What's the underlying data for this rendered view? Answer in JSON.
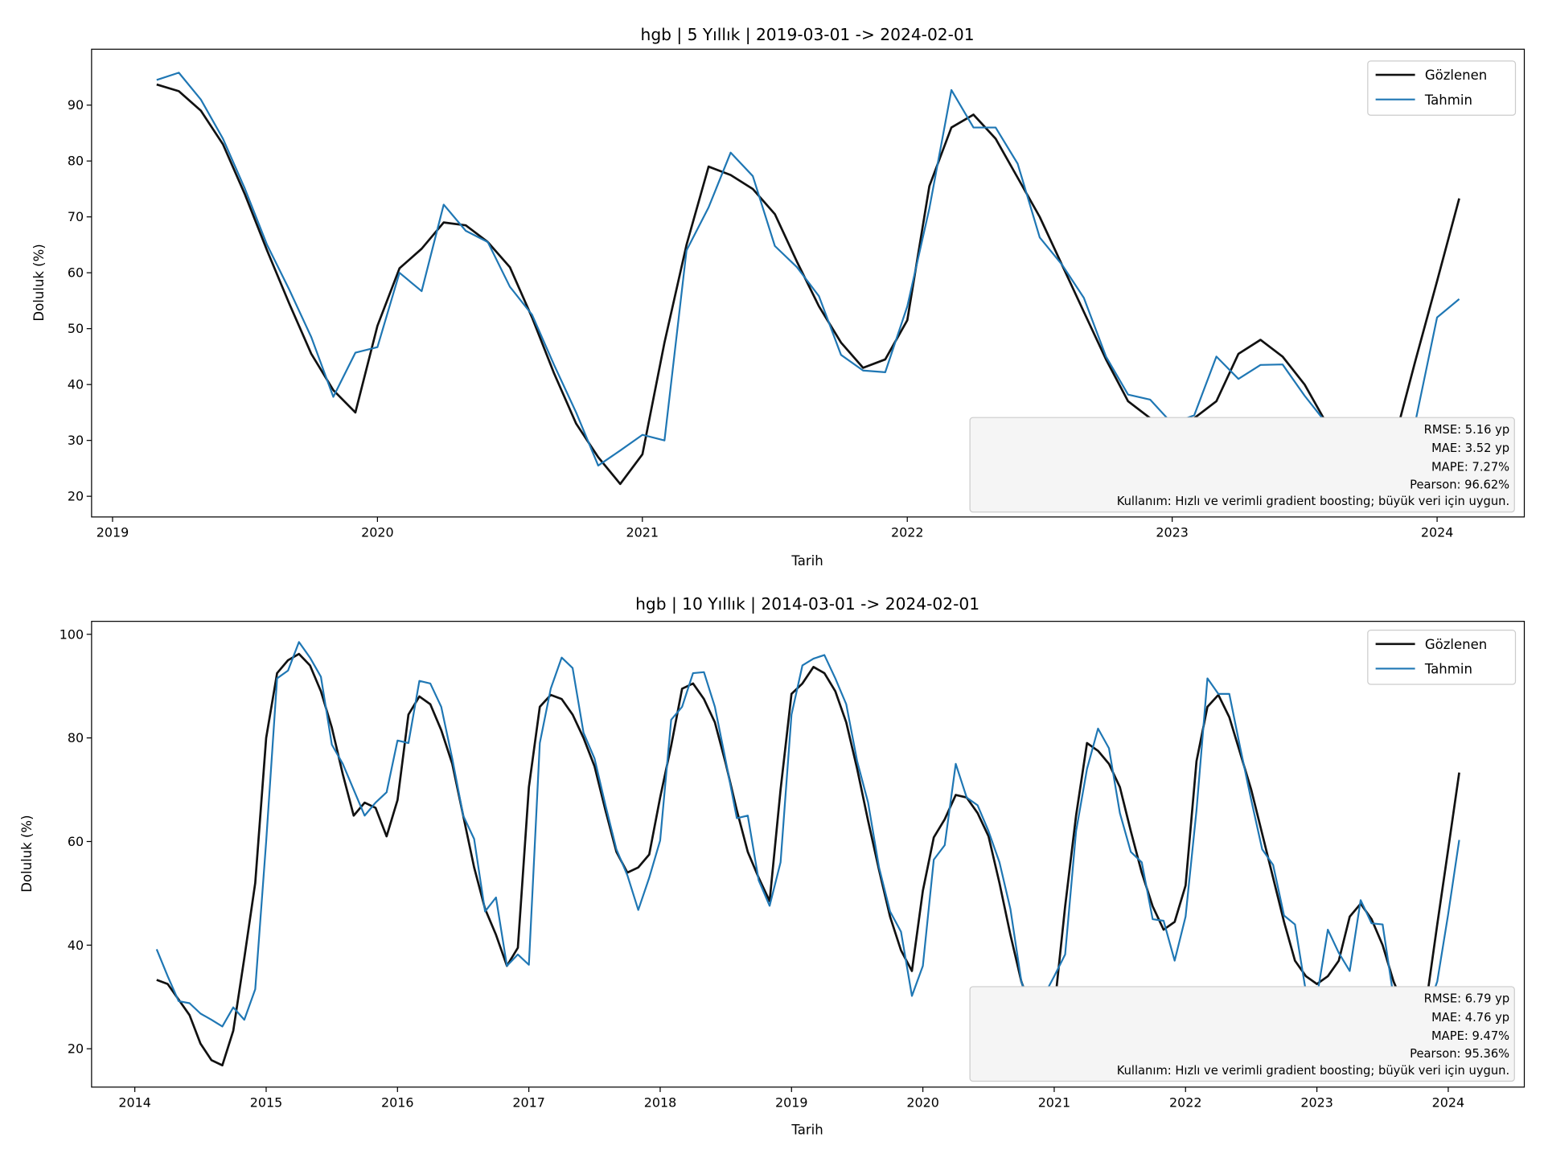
{
  "colors": {
    "observed": "#111111",
    "predicted": "#1f77b4",
    "metrics_box": "#f5f5f5"
  },
  "chart_data": [
    {
      "type": "line",
      "title": "hgb | 5 Yıllık | 2019-03-01 -> 2024-02-01",
      "xlabel": "Tarih",
      "ylabel": "Doluluk (%)",
      "x_start": "2019-03",
      "x_frequency": "monthly",
      "xticks": [
        "2019",
        "2020",
        "2021",
        "2022",
        "2023",
        "2024"
      ],
      "yticks": [
        20,
        30,
        40,
        50,
        60,
        70,
        80,
        90
      ],
      "ylim": [
        16.3,
        100
      ],
      "grid": false,
      "legend": "top-right",
      "series": [
        {
          "name": "Gözlenen",
          "color": "#111111",
          "values": [
            93.7,
            92.5,
            89,
            83,
            74,
            64,
            54.5,
            45.5,
            39,
            35,
            50.5,
            60.8,
            64.3,
            69,
            68.5,
            65.5,
            61,
            52,
            42,
            33,
            27,
            22.2,
            27.5,
            47.5,
            65,
            79,
            77.5,
            75,
            70.5,
            62,
            54,
            47.5,
            43,
            44.5,
            51.5,
            75.5,
            86,
            88.3,
            84,
            77,
            70,
            61.5,
            53,
            44.5,
            37,
            34,
            32.5,
            34,
            37,
            45.5,
            48,
            45,
            40,
            33,
            28,
            26,
            29,
            44,
            58.5,
            73.3
          ]
        },
        {
          "name": "Tahmin",
          "color": "#1f77b4",
          "values": [
            94.5,
            95.8,
            91,
            84,
            75,
            65,
            57,
            48.5,
            37.8,
            45.7,
            46.7,
            60,
            56.7,
            72.2,
            67.5,
            65.5,
            57.5,
            52.5,
            43.5,
            35,
            25.5,
            28.2,
            31,
            30,
            64,
            71.7,
            81.5,
            77.3,
            64.8,
            61,
            55.8,
            45.3,
            42.5,
            42.2,
            54,
            71.5,
            92.7,
            86,
            86,
            79.5,
            66.3,
            61.5,
            55.5,
            45,
            38.2,
            37.3,
            33,
            34.5,
            45,
            41,
            43.5,
            43.6,
            38,
            33,
            29,
            27,
            30,
            33,
            52,
            55.3
          ]
        }
      ],
      "metrics": [
        "RMSE: 5.16 yp",
        "MAE: 3.52 yp",
        "MAPE: 7.27%",
        "Pearson: 96.62%",
        "Kullanım: Hızlı ve verimli gradient boosting; büyük veri için uygun."
      ]
    },
    {
      "type": "line",
      "title": "hgb | 10 Yıllık | 2014-03-01 -> 2024-02-01",
      "xlabel": "Tarih",
      "ylabel": "Doluluk (%)",
      "x_start": "2014-03",
      "x_frequency": "monthly",
      "xticks": [
        "2014",
        "2015",
        "2016",
        "2017",
        "2018",
        "2019",
        "2020",
        "2021",
        "2022",
        "2023",
        "2024"
      ],
      "yticks": [
        20,
        40,
        60,
        80,
        100
      ],
      "ylim": [
        12.6,
        102.5
      ],
      "grid": false,
      "legend": "top-right",
      "series": [
        {
          "name": "Gözlenen",
          "color": "#111111",
          "values": [
            33.3,
            32.5,
            29.5,
            26.5,
            21,
            17.8,
            16.8,
            23.5,
            37.5,
            52,
            80,
            92.5,
            95,
            96.2,
            94,
            89,
            82,
            73,
            65,
            67.5,
            66.5,
            61,
            68,
            84.5,
            88,
            86.5,
            81.5,
            75,
            65,
            55,
            47,
            42,
            36,
            39.5,
            70.5,
            86,
            88.3,
            87.5,
            84.5,
            80,
            74.5,
            66,
            58,
            54,
            55,
            57.5,
            68.5,
            78.5,
            89.5,
            90.5,
            87.5,
            83,
            75,
            66,
            58,
            53,
            48.5,
            70,
            88.5,
            90.5,
            93.7,
            92.5,
            89,
            83,
            74,
            64,
            54.5,
            45.5,
            39,
            35,
            50.5,
            60.8,
            64.3,
            69,
            68.5,
            65.5,
            61,
            52,
            42,
            33,
            27,
            22.2,
            27.5,
            47.5,
            65,
            79,
            77.5,
            75,
            70.5,
            62,
            54,
            47.5,
            43,
            44.5,
            51.5,
            75.5,
            86,
            88.3,
            84,
            77,
            70,
            61.5,
            53,
            44.5,
            37,
            34,
            32.5,
            34,
            37,
            45.5,
            48,
            45,
            40,
            33,
            28,
            26,
            29,
            44,
            58.5,
            73.3
          ]
        },
        {
          "name": "Tahmin",
          "color": "#1f77b4",
          "values": [
            39.2,
            34,
            29.2,
            28.8,
            26.8,
            25.6,
            24.3,
            28,
            25.6,
            31.5,
            60,
            91.5,
            93,
            98.5,
            95.5,
            91.8,
            78.7,
            75,
            70,
            65,
            67.5,
            69.5,
            79.5,
            79,
            91,
            90.5,
            86,
            76,
            65,
            60.5,
            46.5,
            49.2,
            36,
            38.2,
            36.2,
            79,
            89.5,
            95.5,
            93.5,
            81,
            76,
            67,
            58.5,
            53.5,
            46.8,
            53,
            60.2,
            83.5,
            86,
            92.5,
            92.7,
            86,
            75.5,
            64.5,
            65,
            52.5,
            47.6,
            56,
            84.5,
            94,
            95.3,
            96,
            91.5,
            86.5,
            75.5,
            67.5,
            55,
            46.5,
            42.6,
            30.2,
            36,
            56.5,
            59.3,
            75,
            68.5,
            67,
            62,
            56,
            47,
            33,
            27,
            30,
            34,
            38.2,
            62,
            74,
            81.8,
            78,
            65.5,
            58,
            56,
            45,
            44.7,
            37,
            45.5,
            66,
            91.5,
            88.5,
            88.5,
            78,
            68,
            58.5,
            55.5,
            45.7,
            44,
            31,
            30,
            43,
            38.5,
            35,
            48.7,
            44.2,
            44,
            30,
            25,
            23,
            27,
            33,
            46,
            60.3
          ]
        }
      ],
      "metrics": [
        "RMSE: 6.79 yp",
        "MAE: 4.76 yp",
        "MAPE: 9.47%",
        "Pearson: 95.36%",
        "Kullanım: Hızlı ve verimli gradient boosting; büyük veri için uygun."
      ]
    }
  ]
}
